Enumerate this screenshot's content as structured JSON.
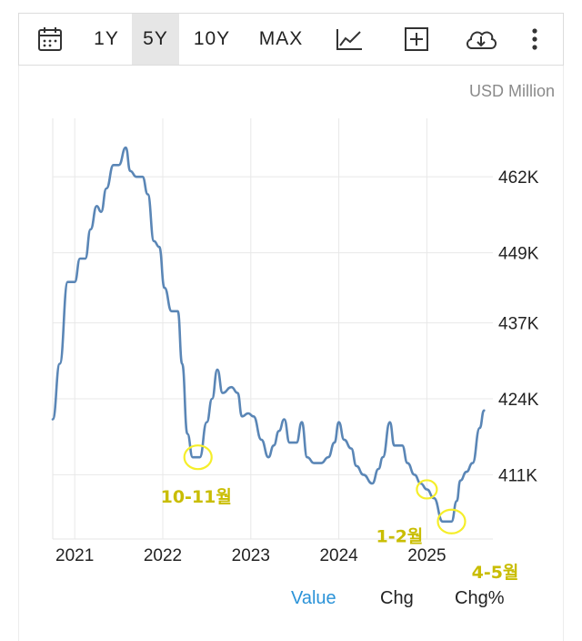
{
  "toolbar": {
    "ranges": [
      "1Y",
      "5Y",
      "10Y",
      "MAX"
    ],
    "active_range": "5Y",
    "icons": [
      "calendar-icon",
      "line-chart-icon",
      "plus-square-icon",
      "cloud-download-icon",
      "more-vertical-icon"
    ]
  },
  "legend": {
    "value": "Value",
    "chg": "Chg",
    "chg_pct": "Chg%"
  },
  "colors": {
    "line": "#5a86b6",
    "annotation": "#f5ee2a",
    "annotation_text": "#c9bd00",
    "legend_active": "#2b93d8"
  },
  "chart_data": {
    "type": "line",
    "unit_label": "USD Million",
    "x_ticks": [
      "2021",
      "2022",
      "2023",
      "2024",
      "2025"
    ],
    "y_ticks": [
      "411K",
      "424K",
      "437K",
      "449K",
      "462K"
    ],
    "y_tick_values": [
      411,
      424,
      437,
      449,
      462
    ],
    "ylim": [
      400,
      472
    ],
    "xlim": [
      2020.75,
      2025.75
    ],
    "grid": true,
    "series": [
      {
        "points": [
          [
            2020.75,
            420.5
          ],
          [
            2020.83,
            430
          ],
          [
            2020.92,
            444
          ],
          [
            2021.0,
            444
          ],
          [
            2021.06,
            448
          ],
          [
            2021.12,
            448
          ],
          [
            2021.18,
            453
          ],
          [
            2021.25,
            457
          ],
          [
            2021.3,
            456
          ],
          [
            2021.36,
            460
          ],
          [
            2021.44,
            464
          ],
          [
            2021.5,
            464
          ],
          [
            2021.58,
            467
          ],
          [
            2021.63,
            463
          ],
          [
            2021.7,
            462
          ],
          [
            2021.77,
            462
          ],
          [
            2021.83,
            459
          ],
          [
            2021.9,
            451
          ],
          [
            2021.96,
            450
          ],
          [
            2022.02,
            443
          ],
          [
            2022.1,
            439
          ],
          [
            2022.17,
            439
          ],
          [
            2022.22,
            430
          ],
          [
            2022.28,
            418
          ],
          [
            2022.34,
            414
          ],
          [
            2022.42,
            414
          ],
          [
            2022.5,
            420
          ],
          [
            2022.56,
            424
          ],
          [
            2022.62,
            429
          ],
          [
            2022.68,
            425
          ],
          [
            2022.78,
            426
          ],
          [
            2022.85,
            425
          ],
          [
            2022.9,
            421
          ],
          [
            2022.97,
            421.5
          ],
          [
            2023.03,
            421
          ],
          [
            2023.12,
            417
          ],
          [
            2023.2,
            414
          ],
          [
            2023.26,
            416
          ],
          [
            2023.32,
            418.5
          ],
          [
            2023.38,
            420.5
          ],
          [
            2023.44,
            416.5
          ],
          [
            2023.52,
            416.5
          ],
          [
            2023.58,
            420
          ],
          [
            2023.64,
            414
          ],
          [
            2023.72,
            413
          ],
          [
            2023.8,
            413
          ],
          [
            2023.88,
            414
          ],
          [
            2023.95,
            416.5
          ],
          [
            2024.0,
            420
          ],
          [
            2024.06,
            417
          ],
          [
            2024.14,
            415.5
          ],
          [
            2024.2,
            412.5
          ],
          [
            2024.28,
            411
          ],
          [
            2024.38,
            409.5
          ],
          [
            2024.45,
            412
          ],
          [
            2024.5,
            414
          ],
          [
            2024.58,
            420
          ],
          [
            2024.63,
            416
          ],
          [
            2024.72,
            416
          ],
          [
            2024.78,
            413
          ],
          [
            2024.86,
            411
          ],
          [
            2024.93,
            409.5
          ],
          [
            2025.0,
            408.5
          ],
          [
            2025.08,
            407
          ],
          [
            2025.18,
            403
          ],
          [
            2025.28,
            403
          ],
          [
            2025.34,
            406.5
          ],
          [
            2025.38,
            410
          ],
          [
            2025.45,
            411.5
          ],
          [
            2025.52,
            413
          ],
          [
            2025.6,
            419
          ],
          [
            2025.65,
            422
          ]
        ]
      }
    ],
    "annotations": [
      {
        "label": "10-11월",
        "x": 2022.4,
        "y": 414
      },
      {
        "label": "1-2월",
        "x": 2025.0,
        "y": 408.5
      },
      {
        "label": "4-5월",
        "x": 2025.28,
        "y": 403
      }
    ]
  }
}
